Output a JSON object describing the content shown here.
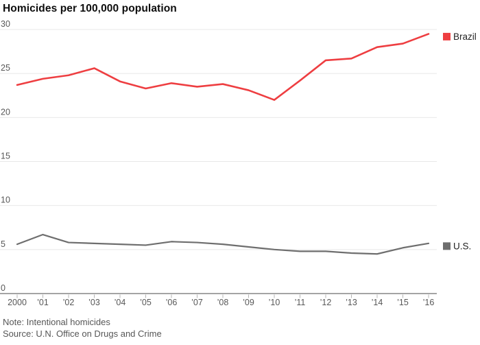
{
  "title": "Homicides per 100,000 population",
  "note": "Note: Intentional homicides",
  "source": "Source: U.N. Office on Drugs and Crime",
  "colors": {
    "brazil_red": "#ee3e41",
    "us_gray": "#6e6e6e",
    "gridline": "#e8e8e8",
    "axis": "#a4a4a4",
    "tick": "#b4b4b4",
    "axis_label": "#575757"
  },
  "chart_data": {
    "type": "line",
    "title": "Homicides per 100,000 population",
    "x": [
      2000,
      2001,
      2002,
      2003,
      2004,
      2005,
      2006,
      2007,
      2008,
      2009,
      2010,
      2011,
      2012,
      2013,
      2014,
      2015,
      2016
    ],
    "x_tick_labels": [
      "2000",
      "’01",
      "’02",
      "’03",
      "’04",
      "’05",
      "’06",
      "’07",
      "’08",
      "’09",
      "’10",
      "’11",
      "’12",
      "’13",
      "’14",
      "’15",
      "’16"
    ],
    "y_ticks": [
      0,
      5,
      10,
      15,
      20,
      25,
      30
    ],
    "ylim": [
      0,
      30
    ],
    "xlabel": "",
    "ylabel": "",
    "grid": "horizontal",
    "legend_position": "right of line ends",
    "series": [
      {
        "name": "Brazil",
        "color": "#ee3e41",
        "values": [
          23.7,
          24.4,
          24.8,
          25.6,
          24.1,
          23.3,
          23.9,
          23.5,
          23.8,
          23.1,
          22.0,
          24.2,
          26.5,
          26.7,
          28.0,
          28.4,
          29.5
        ]
      },
      {
        "name": "U.S.",
        "color": "#6e6e6e",
        "values": [
          5.6,
          6.7,
          5.8,
          5.7,
          5.6,
          5.5,
          5.9,
          5.8,
          5.6,
          5.3,
          5.0,
          4.8,
          4.8,
          4.6,
          4.5,
          5.2,
          5.7
        ]
      }
    ]
  }
}
